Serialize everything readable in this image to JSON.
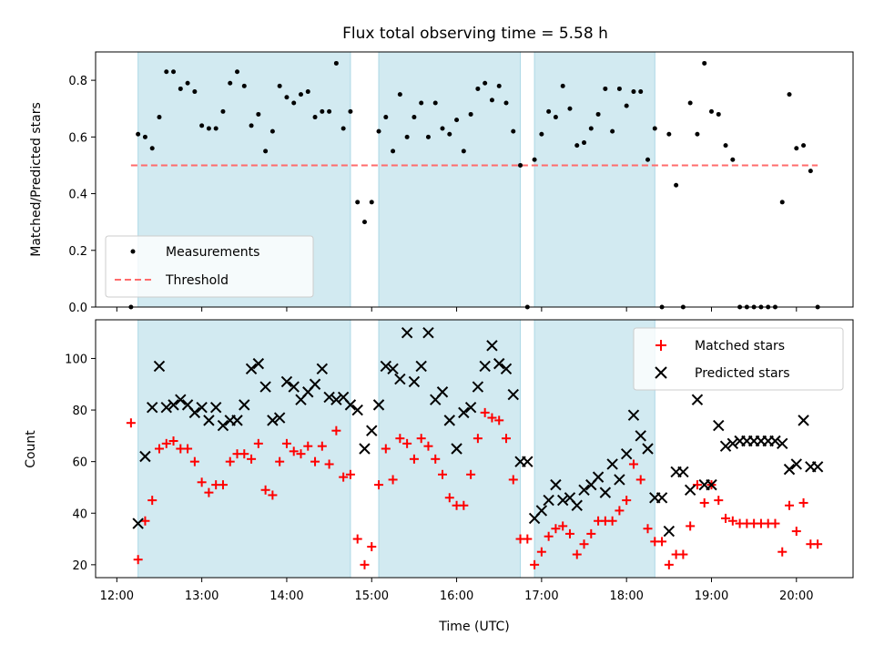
{
  "colors": {
    "shade": "#add8e6",
    "threshold": "#ff6b6b",
    "matched": "#ff0000",
    "predicted": "#000000",
    "measurement": "#000000"
  },
  "chart_data": [
    {
      "type": "scatter",
      "title": "Flux total observing time = 5.58 h",
      "xlabel": "",
      "ylabel": "Matched/Predicted stars",
      "xlim": [
        "11:45",
        "20:40"
      ],
      "ylim": [
        0,
        0.9
      ],
      "yticks": [
        0.0,
        0.2,
        0.4,
        0.6,
        0.8
      ],
      "ytick_labels": [
        "0.0",
        "0.2",
        "0.4",
        "0.6",
        "0.8"
      ],
      "shaded_intervals": [
        [
          "12:15",
          "14:45"
        ],
        [
          "15:05",
          "16:45"
        ],
        [
          "16:55",
          "18:20"
        ]
      ],
      "legend": {
        "placement": "lower-left",
        "entries": [
          "Measurements",
          "Threshold"
        ]
      },
      "series": [
        {
          "name": "Measurements",
          "marker": "dot",
          "x": [
            "12:10",
            "12:15",
            "12:20",
            "12:25",
            "12:30",
            "12:35",
            "12:40",
            "12:45",
            "12:50",
            "12:55",
            "13:00",
            "13:05",
            "13:10",
            "13:15",
            "13:20",
            "13:25",
            "13:30",
            "13:35",
            "13:40",
            "13:45",
            "13:50",
            "13:55",
            "14:00",
            "14:05",
            "14:10",
            "14:15",
            "14:20",
            "14:25",
            "14:30",
            "14:35",
            "14:40",
            "14:45",
            "14:50",
            "14:55",
            "15:00",
            "15:05",
            "15:10",
            "15:15",
            "15:20",
            "15:25",
            "15:30",
            "15:35",
            "15:40",
            "15:45",
            "15:50",
            "15:55",
            "16:00",
            "16:05",
            "16:10",
            "16:15",
            "16:20",
            "16:25",
            "16:30",
            "16:35",
            "16:40",
            "16:45",
            "16:50",
            "16:55",
            "17:00",
            "17:05",
            "17:10",
            "17:15",
            "17:20",
            "17:25",
            "17:30",
            "17:35",
            "17:40",
            "17:45",
            "17:50",
            "17:55",
            "18:00",
            "18:05",
            "18:10",
            "18:15",
            "18:20",
            "18:25",
            "18:30",
            "18:35",
            "18:40",
            "18:45",
            "18:50",
            "18:55",
            "19:00",
            "19:05",
            "19:10",
            "19:15",
            "19:20",
            "19:25",
            "19:30",
            "19:35",
            "19:40",
            "19:45",
            "19:50",
            "19:55",
            "20:00",
            "20:05",
            "20:10",
            "20:15"
          ],
          "y": [
            0.0,
            0.61,
            0.6,
            0.56,
            0.67,
            0.83,
            0.83,
            0.77,
            0.79,
            0.76,
            0.64,
            0.63,
            0.63,
            0.69,
            0.79,
            0.83,
            0.78,
            0.64,
            0.68,
            0.55,
            0.62,
            0.78,
            0.74,
            0.72,
            0.75,
            0.76,
            0.67,
            0.69,
            0.69,
            0.86,
            0.63,
            0.69,
            0.37,
            0.3,
            0.37,
            0.62,
            0.67,
            0.55,
            0.75,
            0.6,
            0.67,
            0.72,
            0.6,
            0.72,
            0.63,
            0.61,
            0.66,
            0.55,
            0.68,
            0.77,
            0.79,
            0.73,
            0.78,
            0.72,
            0.62,
            0.5,
            0.0,
            0.52,
            0.61,
            0.69,
            0.67,
            0.78,
            0.7,
            0.57,
            0.58,
            0.63,
            0.68,
            0.77,
            0.62,
            0.77,
            0.71,
            0.76,
            0.76,
            0.52,
            0.63,
            0.0,
            0.61,
            0.43,
            0.0,
            0.72,
            0.61,
            0.86,
            0.69,
            0.68,
            0.57,
            0.52,
            0.0,
            0.0,
            0.0,
            0.0,
            0.0,
            0.0,
            0.37,
            0.75,
            0.56,
            0.57,
            0.48,
            0.0
          ]
        },
        {
          "name": "Threshold",
          "type": "line",
          "style": "dashed",
          "x": [
            "12:10",
            "20:15"
          ],
          "y": [
            0.5,
            0.5
          ]
        }
      ]
    },
    {
      "type": "scatter",
      "title": "",
      "xlabel": "Time (UTC)",
      "ylabel": "Count",
      "xlim": [
        "11:45",
        "20:40"
      ],
      "ylim": [
        15,
        115
      ],
      "xticks": [
        "12:00",
        "13:00",
        "14:00",
        "15:00",
        "16:00",
        "17:00",
        "18:00",
        "19:00",
        "20:00"
      ],
      "yticks": [
        20,
        40,
        60,
        80,
        100
      ],
      "ytick_labels": [
        "20",
        "40",
        "60",
        "80",
        "100"
      ],
      "shaded_intervals": [
        [
          "12:15",
          "14:45"
        ],
        [
          "15:05",
          "16:45"
        ],
        [
          "16:55",
          "18:20"
        ]
      ],
      "legend": {
        "placement": "top-right",
        "entries": [
          "Matched stars",
          "Predicted stars"
        ]
      },
      "series": [
        {
          "name": "Matched stars",
          "marker": "plus",
          "x": [
            "12:10",
            "12:15",
            "12:20",
            "12:25",
            "12:30",
            "12:35",
            "12:40",
            "12:45",
            "12:50",
            "12:55",
            "13:00",
            "13:05",
            "13:10",
            "13:15",
            "13:20",
            "13:25",
            "13:30",
            "13:35",
            "13:40",
            "13:45",
            "13:50",
            "13:55",
            "14:00",
            "14:05",
            "14:10",
            "14:15",
            "14:20",
            "14:25",
            "14:30",
            "14:35",
            "14:40",
            "14:45",
            "14:50",
            "14:55",
            "15:00",
            "15:05",
            "15:10",
            "15:15",
            "15:20",
            "15:25",
            "15:30",
            "15:35",
            "15:40",
            "15:45",
            "15:50",
            "15:55",
            "16:00",
            "16:05",
            "16:10",
            "16:15",
            "16:20",
            "16:25",
            "16:30",
            "16:35",
            "16:40",
            "16:45",
            "16:50",
            "16:55",
            "17:00",
            "17:05",
            "17:10",
            "17:15",
            "17:20",
            "17:25",
            "17:30",
            "17:35",
            "17:40",
            "17:45",
            "17:50",
            "17:55",
            "18:00",
            "18:05",
            "18:10",
            "18:15",
            "18:20",
            "18:25",
            "18:30",
            "18:35",
            "18:40",
            "18:45",
            "18:50",
            "18:55",
            "19:00",
            "19:05",
            "19:10",
            "19:15",
            "19:20",
            "19:25",
            "19:30",
            "19:35",
            "19:40",
            "19:45",
            "19:50",
            "19:55",
            "20:00",
            "20:05",
            "20:10",
            "20:15"
          ],
          "y": [
            75,
            22,
            37,
            45,
            65,
            67,
            68,
            65,
            65,
            60,
            52,
            48,
            51,
            51,
            60,
            63,
            63,
            61,
            67,
            49,
            47,
            60,
            67,
            64,
            63,
            66,
            60,
            66,
            59,
            72,
            54,
            55,
            30,
            20,
            27,
            51,
            65,
            53,
            69,
            67,
            61,
            69,
            66,
            61,
            55,
            46,
            43,
            43,
            55,
            69,
            79,
            77,
            76,
            69,
            53,
            30,
            30,
            20,
            25,
            31,
            34,
            35,
            32,
            24,
            28,
            32,
            37,
            37,
            37,
            41,
            45,
            59,
            53,
            34,
            29,
            29,
            20,
            24,
            24,
            35,
            51,
            44,
            51,
            45,
            38,
            37,
            36,
            36,
            36,
            36,
            36,
            36,
            25,
            43,
            33,
            44,
            28,
            28
          ]
        },
        {
          "name": "Predicted stars",
          "marker": "x",
          "x": [
            "12:15",
            "12:20",
            "12:25",
            "12:30",
            "12:35",
            "12:40",
            "12:45",
            "12:50",
            "12:55",
            "13:00",
            "13:05",
            "13:10",
            "13:15",
            "13:20",
            "13:25",
            "13:30",
            "13:35",
            "13:40",
            "13:45",
            "13:50",
            "13:55",
            "14:00",
            "14:05",
            "14:10",
            "14:15",
            "14:20",
            "14:25",
            "14:30",
            "14:35",
            "14:40",
            "14:45",
            "14:50",
            "14:55",
            "15:00",
            "15:05",
            "15:10",
            "15:15",
            "15:20",
            "15:25",
            "15:30",
            "15:35",
            "15:40",
            "15:45",
            "15:50",
            "15:55",
            "16:00",
            "16:05",
            "16:10",
            "16:15",
            "16:20",
            "16:25",
            "16:30",
            "16:35",
            "16:40",
            "16:45",
            "16:50",
            "16:55",
            "17:00",
            "17:05",
            "17:10",
            "17:15",
            "17:20",
            "17:25",
            "17:30",
            "17:35",
            "17:40",
            "17:45",
            "17:50",
            "17:55",
            "18:00",
            "18:05",
            "18:10",
            "18:15",
            "18:20",
            "18:25",
            "18:30",
            "18:35",
            "18:40",
            "18:45",
            "18:50",
            "18:55",
            "19:00",
            "19:05",
            "19:10",
            "19:15",
            "19:20",
            "19:25",
            "19:30",
            "19:35",
            "19:40",
            "19:45",
            "19:50",
            "19:55",
            "20:00",
            "20:05",
            "20:10",
            "20:15"
          ],
          "y": [
            36,
            62,
            81,
            97,
            81,
            82,
            84,
            82,
            79,
            81,
            76,
            81,
            74,
            76,
            76,
            82,
            96,
            98,
            89,
            76,
            77,
            91,
            89,
            84,
            87,
            90,
            96,
            85,
            84,
            85,
            82,
            80,
            65,
            72,
            82,
            97,
            96,
            92,
            110,
            91,
            97,
            110,
            84,
            87,
            76,
            65,
            79,
            81,
            89,
            97,
            105,
            98,
            96,
            86,
            60,
            60,
            38,
            41,
            45,
            51,
            45,
            46,
            43,
            49,
            51,
            54,
            48,
            59,
            53,
            63,
            78,
            70,
            65,
            46,
            46,
            33,
            56,
            56,
            49,
            84,
            51,
            51,
            74,
            66,
            67,
            68,
            68,
            68,
            68,
            68,
            68,
            67,
            57,
            59,
            76,
            58,
            58
          ]
        }
      ]
    }
  ]
}
